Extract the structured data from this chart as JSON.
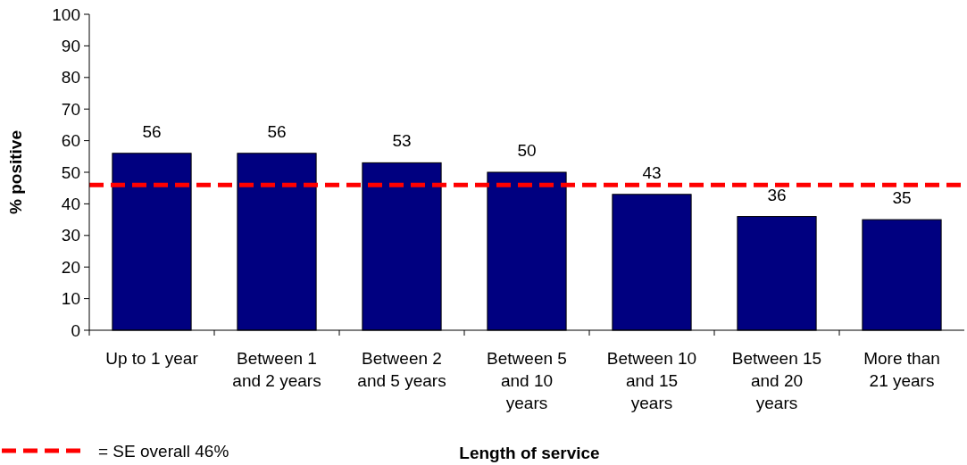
{
  "chart_data": {
    "type": "bar",
    "xlabel": "Length of service",
    "ylabel": "% positive",
    "categories": [
      "Up to 1 year",
      "Between 1 and 2 years",
      "Between 2 and 5 years",
      "Between 5 and 10 years",
      "Between 10 and 15 years",
      "Between 15 and 20 years",
      "More than 21 years"
    ],
    "values": [
      56,
      56,
      53,
      50,
      43,
      36,
      35
    ],
    "color": "#000080",
    "data_labels": true,
    "ylim": [
      0,
      100
    ],
    "yticks": [
      0,
      10,
      20,
      30,
      40,
      50,
      60,
      70,
      80,
      90,
      100
    ],
    "grid": false,
    "legend": "bottom left",
    "ref_lines": [
      {
        "axis": "y",
        "value": 46,
        "label": "= SE overall 46%",
        "color": "#ff0000",
        "line_style": "dashed"
      }
    ]
  }
}
